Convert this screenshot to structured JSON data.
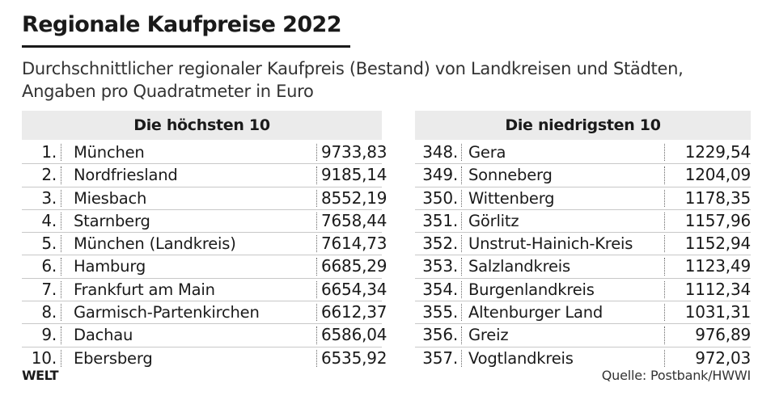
{
  "title": "Regionale Kaufpreise 2022",
  "subtitle": "Durchschnittlicher regionaler Kaufpreis (Bestand) von Landkreisen und Städten, Angaben pro Quadratmeter in Euro",
  "highest": {
    "heading": "Die höchsten 10",
    "rows": [
      {
        "rank": "1.",
        "name": "München",
        "value": "9733,83"
      },
      {
        "rank": "2.",
        "name": "Nordfriesland",
        "value": "9185,14"
      },
      {
        "rank": "3.",
        "name": "Miesbach",
        "value": "8552,19"
      },
      {
        "rank": "4.",
        "name": "Starnberg",
        "value": "7658,44"
      },
      {
        "rank": "5.",
        "name": "München (Landkreis)",
        "value": "7614,73"
      },
      {
        "rank": "6.",
        "name": "Hamburg",
        "value": "6685,29"
      },
      {
        "rank": "7.",
        "name": "Frankfurt am Main",
        "value": "6654,34"
      },
      {
        "rank": "8.",
        "name": "Garmisch-Partenkirchen",
        "value": "6612,37"
      },
      {
        "rank": "9.",
        "name": "Dachau",
        "value": "6586,04"
      },
      {
        "rank": "10.",
        "name": "Ebersberg",
        "value": "6535,92"
      }
    ]
  },
  "lowest": {
    "heading": "Die niedrigsten 10",
    "rows": [
      {
        "rank": "348.",
        "name": "Gera",
        "value": "1229,54"
      },
      {
        "rank": "349.",
        "name": "Sonneberg",
        "value": "1204,09"
      },
      {
        "rank": "350.",
        "name": "Wittenberg",
        "value": "1178,35"
      },
      {
        "rank": "351.",
        "name": "Görlitz",
        "value": "1157,96"
      },
      {
        "rank": "352.",
        "name": "Unstrut-Hainich-Kreis",
        "value": "1152,94"
      },
      {
        "rank": "353.",
        "name": "Salzlandkreis",
        "value": "1123,49"
      },
      {
        "rank": "354.",
        "name": "Burgenlandkreis",
        "value": "1112,34"
      },
      {
        "rank": "355.",
        "name": "Altenburger Land",
        "value": "1031,31"
      },
      {
        "rank": "356.",
        "name": "Greiz",
        "value": "976,89"
      },
      {
        "rank": "357.",
        "name": "Vogtlandkreis",
        "value": "972,03"
      }
    ]
  },
  "logo": "WELT",
  "source": "Quelle: Postbank/HWWI"
}
